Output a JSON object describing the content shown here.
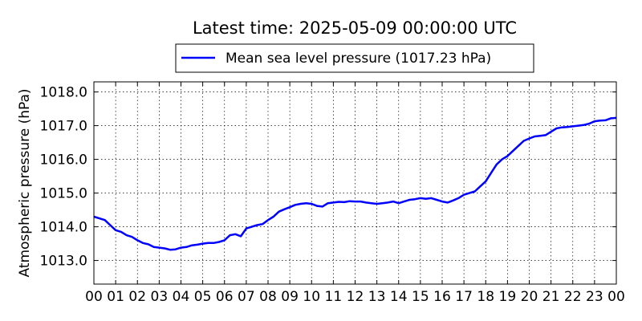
{
  "chart_data": {
    "type": "line",
    "title": "Latest time: 2025-05-09 00:00:00 UTC",
    "ylabel": "Atmospheric pressure (hPa)",
    "xlabel": "",
    "grid": true,
    "legend_position": "top-center, above plot",
    "x_ticks": [
      "00",
      "01",
      "02",
      "03",
      "04",
      "05",
      "06",
      "07",
      "08",
      "09",
      "10",
      "11",
      "12",
      "13",
      "14",
      "15",
      "16",
      "17",
      "18",
      "19",
      "20",
      "21",
      "22",
      "23",
      "00"
    ],
    "y_ticks": [
      "1013.0",
      "1014.0",
      "1015.0",
      "1016.0",
      "1017.0",
      "1018.0"
    ],
    "xlim": [
      0,
      24
    ],
    "ylim": [
      1012.3,
      1018.3
    ],
    "series": [
      {
        "name": "Mean sea level pressure (1017.23 hPa)",
        "color": "#0000ff",
        "x": [
          0,
          0.25,
          0.5,
          0.75,
          1.0,
          1.25,
          1.5,
          1.75,
          2.0,
          2.25,
          2.5,
          2.75,
          3.0,
          3.25,
          3.5,
          3.75,
          4.0,
          4.25,
          4.5,
          4.75,
          5.0,
          5.25,
          5.5,
          5.75,
          6.0,
          6.25,
          6.5,
          6.75,
          7.0,
          7.25,
          7.5,
          7.75,
          8.0,
          8.25,
          8.5,
          8.75,
          9.0,
          9.25,
          9.5,
          9.75,
          10.0,
          10.25,
          10.5,
          10.75,
          11.0,
          11.25,
          11.5,
          11.75,
          12.0,
          12.25,
          12.5,
          12.75,
          13.0,
          13.25,
          13.5,
          13.75,
          14.0,
          14.25,
          14.5,
          14.75,
          15.0,
          15.25,
          15.5,
          15.75,
          16.0,
          16.25,
          16.5,
          16.75,
          17.0,
          17.25,
          17.5,
          17.75,
          18.0,
          18.25,
          18.5,
          18.75,
          19.0,
          19.25,
          19.5,
          19.75,
          20.0,
          20.25,
          20.5,
          20.75,
          21.0,
          21.25,
          21.5,
          21.75,
          22.0,
          22.25,
          22.5,
          22.75,
          23.0,
          23.25,
          23.5,
          23.75,
          24.0
        ],
        "y": [
          1014.3,
          1014.25,
          1014.2,
          1014.05,
          1013.9,
          1013.85,
          1013.75,
          1013.7,
          1013.6,
          1013.52,
          1013.48,
          1013.4,
          1013.38,
          1013.36,
          1013.32,
          1013.33,
          1013.38,
          1013.4,
          1013.45,
          1013.47,
          1013.5,
          1013.52,
          1013.52,
          1013.55,
          1013.6,
          1013.75,
          1013.78,
          1013.72,
          1013.95,
          1014.0,
          1014.05,
          1014.08,
          1014.2,
          1014.3,
          1014.45,
          1014.52,
          1014.58,
          1014.65,
          1014.68,
          1014.7,
          1014.68,
          1014.62,
          1014.6,
          1014.7,
          1014.72,
          1014.74,
          1014.73,
          1014.76,
          1014.75,
          1014.75,
          1014.72,
          1014.7,
          1014.68,
          1014.7,
          1014.72,
          1014.75,
          1014.7,
          1014.75,
          1014.8,
          1014.82,
          1014.85,
          1014.83,
          1014.85,
          1014.8,
          1014.75,
          1014.72,
          1014.78,
          1014.85,
          1014.95,
          1015.0,
          1015.05,
          1015.2,
          1015.35,
          1015.6,
          1015.85,
          1016.0,
          1016.1,
          1016.25,
          1016.4,
          1016.55,
          1016.62,
          1016.68,
          1016.7,
          1016.72,
          1016.82,
          1016.92,
          1016.95,
          1016.96,
          1016.98,
          1017.0,
          1017.02,
          1017.06,
          1017.13,
          1017.15,
          1017.16,
          1017.22,
          1017.23
        ]
      }
    ]
  }
}
